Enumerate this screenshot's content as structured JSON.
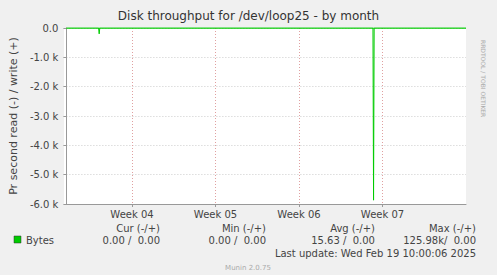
{
  "chart_data": {
    "type": "line",
    "title": "Disk throughput for /dev/loop25 - by month",
    "y_label": "Pr second read (-) / write (+)",
    "x": [
      16,
      18.7,
      18.75,
      18.8,
      41.7,
      41.75,
      41.8,
      49.5
    ],
    "series": [
      {
        "name": "Bytes",
        "color": "#00cc00",
        "values": [
          0,
          0,
          -200,
          0,
          0,
          -5870,
          0,
          0
        ],
        "write_values": [
          0,
          0,
          0,
          0,
          0,
          0,
          0,
          0
        ]
      }
    ],
    "xlim": [
      16,
      49.5
    ],
    "xticks": [
      {
        "value": 21.5,
        "label": "Week 04"
      },
      {
        "value": 28.5,
        "label": "Week 05"
      },
      {
        "value": 35.5,
        "label": "Week 06"
      },
      {
        "value": 42.5,
        "label": "Week 07"
      }
    ],
    "ylim": [
      -6000,
      0
    ],
    "yticks": [
      {
        "value": 0,
        "label": "0.0"
      },
      {
        "value": -1000,
        "label": "-1.0 k"
      },
      {
        "value": -2000,
        "label": "-2.0 k"
      },
      {
        "value": -3000,
        "label": "-3.0 k"
      },
      {
        "value": -4000,
        "label": "-4.0 k"
      },
      {
        "value": -5000,
        "label": "-5.0 k"
      },
      {
        "value": -6000,
        "label": "-6.0 k"
      }
    ],
    "grid": true,
    "summary": {
      "columns": [
        "Cur (-/+)",
        "Min (-/+)",
        "Avg (-/+)",
        "Max (-/+)"
      ],
      "rows": [
        {
          "name": "Bytes",
          "cells": [
            "0.00 /  0.00",
            "0.00 /  0.00",
            "15.63 /  0.00",
            "125.98k/  0.00"
          ]
        }
      ]
    },
    "last_update": "Last update: Wed Feb 19 10:00:06 2025",
    "footer": "Munin 2.0.75",
    "watermark": "RRDTOOL / TOBI OETIKER"
  }
}
